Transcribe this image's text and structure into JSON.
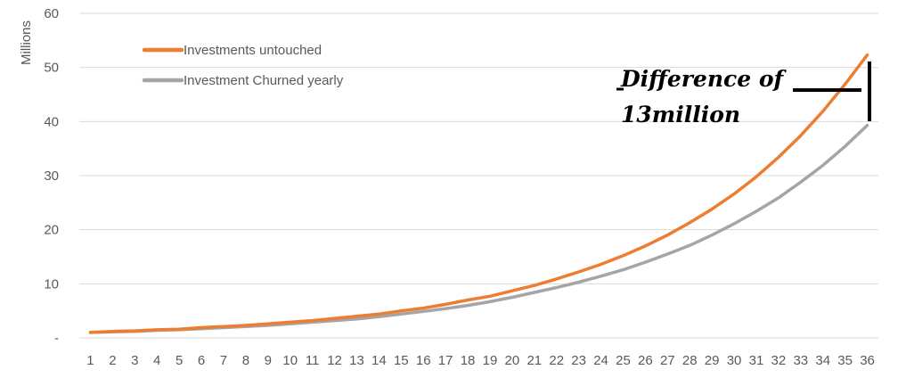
{
  "chart_data": {
    "type": "line",
    "title": "",
    "xlabel": "",
    "ylabel": "Millions",
    "x": [
      1,
      2,
      3,
      4,
      5,
      6,
      7,
      8,
      9,
      10,
      11,
      12,
      13,
      14,
      15,
      16,
      17,
      18,
      19,
      20,
      21,
      22,
      23,
      24,
      25,
      26,
      27,
      28,
      29,
      30,
      31,
      32,
      33,
      34,
      35,
      36
    ],
    "yticks": [
      "-",
      "10",
      "20",
      "30",
      "40",
      "50",
      "60"
    ],
    "ylim": [
      0,
      60
    ],
    "grid": true,
    "legend_position": "top-left",
    "series": [
      {
        "name": "Investments untouched",
        "color": "#ed7d31",
        "values": [
          1.0,
          1.2,
          1.3,
          1.5,
          1.6,
          1.9,
          2.1,
          2.3,
          2.6,
          2.9,
          3.2,
          3.6,
          4.0,
          4.4,
          5.0,
          5.5,
          6.2,
          7.0,
          7.7,
          8.7,
          9.7,
          10.9,
          12.2,
          13.6,
          15.2,
          17.0,
          19.0,
          21.3,
          23.8,
          26.6,
          29.8,
          33.4,
          37.4,
          41.9,
          46.9,
          52.3
        ]
      },
      {
        "name": "Investment Churned yearly",
        "color": "#a5a5a5",
        "values": [
          1.0,
          1.1,
          1.2,
          1.4,
          1.5,
          1.7,
          1.9,
          2.1,
          2.3,
          2.6,
          2.9,
          3.2,
          3.5,
          3.9,
          4.4,
          4.9,
          5.4,
          6.0,
          6.7,
          7.5,
          8.4,
          9.3,
          10.3,
          11.4,
          12.6,
          14.0,
          15.5,
          17.1,
          19.0,
          21.1,
          23.4,
          25.9,
          28.8,
          31.9,
          35.4,
          39.3
        ]
      }
    ],
    "annotation": {
      "line1": "Difference of",
      "line2": "13million"
    }
  }
}
